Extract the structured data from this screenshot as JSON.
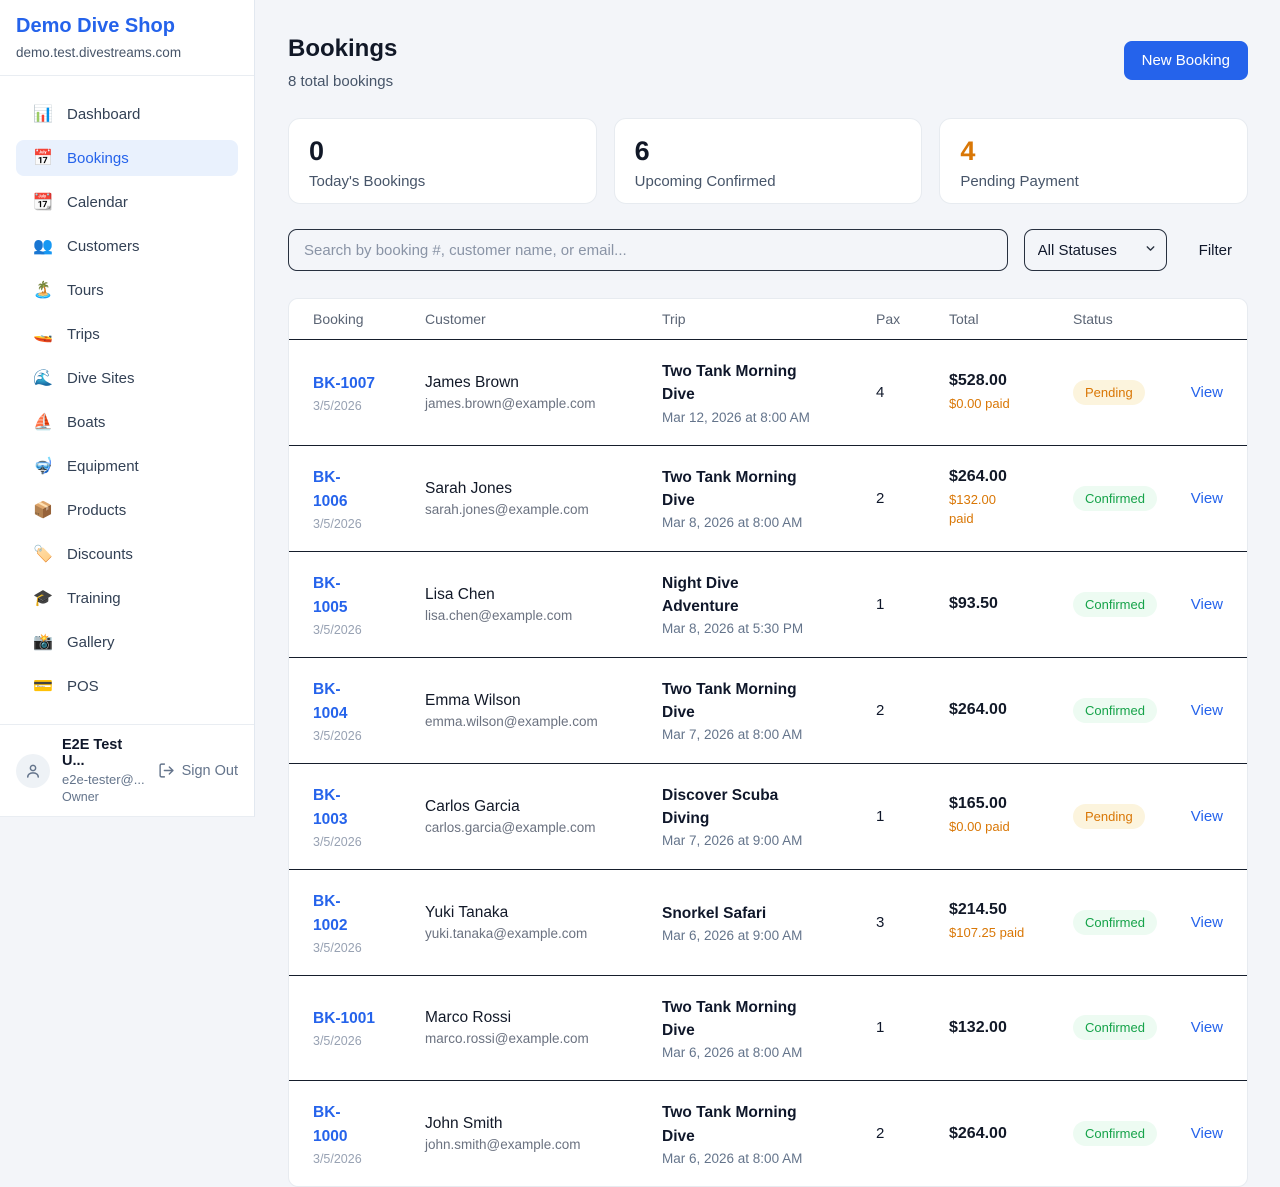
{
  "colors": {
    "accent": "#2563eb",
    "pending": "#d97706",
    "confirmed": "#16a34a"
  },
  "sidebar": {
    "brand": {
      "name": "Demo Dive Shop",
      "domain": "demo.test.divestreams.com"
    },
    "nav": [
      {
        "label": "Dashboard",
        "icon": "📊",
        "icon_name": "bar-chart-icon",
        "active": false
      },
      {
        "label": "Bookings",
        "icon": "📅",
        "icon_name": "calendar-icon",
        "active": true
      },
      {
        "label": "Calendar",
        "icon": "📆",
        "icon_name": "tear-off-calendar-icon",
        "active": false
      },
      {
        "label": "Customers",
        "icon": "👥",
        "icon_name": "people-icon",
        "active": false
      },
      {
        "label": "Tours",
        "icon": "🏝️",
        "icon_name": "island-icon",
        "active": false
      },
      {
        "label": "Trips",
        "icon": "🚤",
        "icon_name": "speedboat-icon",
        "active": false
      },
      {
        "label": "Dive Sites",
        "icon": "🌊",
        "icon_name": "wave-icon",
        "active": false
      },
      {
        "label": "Boats",
        "icon": "⛵",
        "icon_name": "sailboat-icon",
        "active": false
      },
      {
        "label": "Equipment",
        "icon": "🤿",
        "icon_name": "diving-mask-icon",
        "active": false
      },
      {
        "label": "Products",
        "icon": "📦",
        "icon_name": "package-icon",
        "active": false
      },
      {
        "label": "Discounts",
        "icon": "🏷️",
        "icon_name": "tag-icon",
        "active": false
      },
      {
        "label": "Training",
        "icon": "🎓",
        "icon_name": "graduation-cap-icon",
        "active": false
      },
      {
        "label": "Gallery",
        "icon": "📸",
        "icon_name": "camera-icon",
        "active": false
      },
      {
        "label": "POS",
        "icon": "💳",
        "icon_name": "credit-card-icon",
        "active": false
      }
    ],
    "user": {
      "name": "E2E Test U...",
      "email": "e2e-tester@...",
      "role": "Owner",
      "sign_out_label": "Sign Out"
    }
  },
  "header": {
    "title": "Bookings",
    "subtitle": "8 total bookings",
    "new_booking_label": "New Booking"
  },
  "stats": [
    {
      "value": "0",
      "label": "Today's Bookings",
      "value_color": "#111827"
    },
    {
      "value": "6",
      "label": "Upcoming Confirmed",
      "value_color": "#111827"
    },
    {
      "value": "4",
      "label": "Pending Payment",
      "value_color": "#d97706"
    }
  ],
  "controls": {
    "search_placeholder": "Search by booking #, customer name, or email...",
    "status_filter": "All Statuses",
    "filter_label": "Filter"
  },
  "table": {
    "columns": [
      "Booking",
      "Customer",
      "Trip",
      "Pax",
      "Total",
      "Status"
    ],
    "view_label": "View",
    "rows": [
      {
        "id": "BK-1007",
        "id_wrapped": false,
        "date": "3/5/2026",
        "customer": "James Brown",
        "email": "james.brown@example.com",
        "trip": "Two Tank Morning Dive",
        "trip_datetime": "Mar 12, 2026 at 8:00 AM",
        "pax": "4",
        "total": "$528.00",
        "paid": "$0.00 paid",
        "paid_wrapped": false,
        "status": "Pending"
      },
      {
        "id": "BK-1006",
        "id_wrapped": true,
        "date": "3/5/2026",
        "customer": "Sarah Jones",
        "email": "sarah.jones@example.com",
        "trip": "Two Tank Morning Dive",
        "trip_datetime": "Mar 8, 2026 at 8:00 AM",
        "pax": "2",
        "total": "$264.00",
        "paid": "$132.00 paid",
        "paid_wrapped": true,
        "status": "Confirmed"
      },
      {
        "id": "BK-1005",
        "id_wrapped": true,
        "date": "3/5/2026",
        "customer": "Lisa Chen",
        "email": "lisa.chen@example.com",
        "trip": "Night Dive Adventure",
        "trip_datetime": "Mar 8, 2026 at 5:30 PM",
        "pax": "1",
        "total": "$93.50",
        "paid": "",
        "paid_wrapped": false,
        "status": "Confirmed"
      },
      {
        "id": "BK-1004",
        "id_wrapped": true,
        "date": "3/5/2026",
        "customer": "Emma Wilson",
        "email": "emma.wilson@example.com",
        "trip": "Two Tank Morning Dive",
        "trip_datetime": "Mar 7, 2026 at 8:00 AM",
        "pax": "2",
        "total": "$264.00",
        "paid": "",
        "paid_wrapped": false,
        "status": "Confirmed"
      },
      {
        "id": "BK-1003",
        "id_wrapped": true,
        "date": "3/5/2026",
        "customer": "Carlos Garcia",
        "email": "carlos.garcia@example.com",
        "trip": "Discover Scuba Diving",
        "trip_datetime": "Mar 7, 2026 at 9:00 AM",
        "pax": "1",
        "total": "$165.00",
        "paid": "$0.00 paid",
        "paid_wrapped": false,
        "status": "Pending"
      },
      {
        "id": "BK-1002",
        "id_wrapped": true,
        "date": "3/5/2026",
        "customer": "Yuki Tanaka",
        "email": "yuki.tanaka@example.com",
        "trip": "Snorkel Safari",
        "trip_datetime": "Mar 6, 2026 at 9:00 AM",
        "pax": "3",
        "total": "$214.50",
        "paid": "$107.25 paid",
        "paid_wrapped": false,
        "status": "Confirmed"
      },
      {
        "id": "BK-1001",
        "id_wrapped": false,
        "date": "3/5/2026",
        "customer": "Marco Rossi",
        "email": "marco.rossi@example.com",
        "trip": "Two Tank Morning Dive",
        "trip_datetime": "Mar 6, 2026 at 8:00 AM",
        "pax": "1",
        "total": "$132.00",
        "paid": "",
        "paid_wrapped": false,
        "status": "Confirmed"
      },
      {
        "id": "BK-1000",
        "id_wrapped": true,
        "date": "3/5/2026",
        "customer": "John Smith",
        "email": "john.smith@example.com",
        "trip": "Two Tank Morning Dive",
        "trip_datetime": "Mar 6, 2026 at 8:00 AM",
        "pax": "2",
        "total": "$264.00",
        "paid": "",
        "paid_wrapped": false,
        "status": "Confirmed"
      }
    ]
  }
}
